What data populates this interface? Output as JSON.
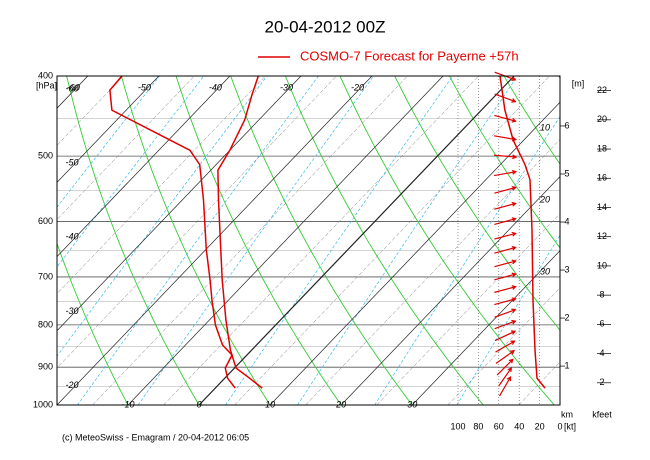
{
  "chart_data": {
    "type": "emagram",
    "title": "20-04-2012  00Z",
    "footer": "(c) MeteoSwiss - Emagram  /  20-04-2012  06:05",
    "ylabel": "[hPa]",
    "log_y": true,
    "ylim": [
      1000,
      400
    ],
    "yticks": [
      400,
      500,
      600,
      700,
      800,
      900,
      1000
    ],
    "xlim": [
      -20,
      50.8
    ],
    "xticks_top": [
      -60,
      -50,
      -40,
      -30,
      -20
    ],
    "xticks_bottom": [
      -10,
      0,
      10,
      20,
      30
    ],
    "xticks_left": [
      -60,
      -50,
      -40,
      -30,
      -20
    ],
    "series": [
      {
        "name": "COSMO-7 Forecast for Payerne   +57h",
        "color": "#e00000",
        "values": [
          6.6,
          3.5,
          0.2,
          -3.0,
          -7.7,
          -13.6,
          -19.3,
          -24.9,
          -29.0,
          -30.0,
          -32.0,
          -34.4,
          -36.0
        ],
        "pressure": [
          954,
          928,
          902,
          858,
          789,
          706,
          631,
          565,
          520,
          492,
          452,
          421,
          400
        ]
      },
      {
        "color": "#e00000",
        "values": [
          2.8,
          0.4,
          -1.3,
          -2.1,
          -4.8,
          -8.5,
          -12.3,
          -15.3,
          -19.9,
          -27.0,
          -32.3,
          -35.6,
          -52.0,
          -55.0,
          -55.2
        ],
        "pressure": [
          954,
          928,
          902,
          870,
          846,
          800,
          747,
          706,
          649,
          565,
          512,
          492,
          440,
          416,
          400
        ]
      }
    ],
    "wind": {
      "color": "#e00000",
      "xlabel": "[kt]",
      "xlim": [
        100,
        0
      ],
      "xticks": [
        100,
        80,
        60,
        40,
        20,
        0
      ],
      "values": [
        14.7,
        22.5,
        24.5,
        26.5,
        27.5,
        29.4,
        34.3,
        46,
        54,
        58.8
      ],
      "pressure": [
        954,
        928,
        858,
        747,
        614,
        534,
        512,
        478,
        440,
        400
      ],
      "panel_labels": [
        10,
        20,
        30
      ]
    },
    "wind_direction": {
      "color": "#e00000",
      "pressure": [
        400,
        425,
        450,
        475,
        500,
        525,
        550,
        575,
        600,
        625,
        650,
        675,
        700,
        725,
        750,
        775,
        800,
        825,
        850,
        875,
        900,
        925,
        950
      ],
      "values": [
        290,
        290,
        285,
        280,
        275,
        260,
        255,
        255,
        255,
        255,
        255,
        255,
        255,
        255,
        255,
        250,
        250,
        245,
        240,
        235,
        225,
        215,
        210
      ]
    },
    "km": {
      "top_label": "[m]",
      "label": "km",
      "lim": [
        0.19,
        7.04
      ],
      "ticks": [
        1,
        2,
        3,
        4,
        5,
        6
      ]
    },
    "kfeet": {
      "label": "kfeet",
      "lim": [
        0.48,
        23.0
      ],
      "ticks": [
        2,
        4,
        6,
        8,
        10,
        12,
        14,
        16,
        18,
        20,
        22
      ]
    }
  }
}
